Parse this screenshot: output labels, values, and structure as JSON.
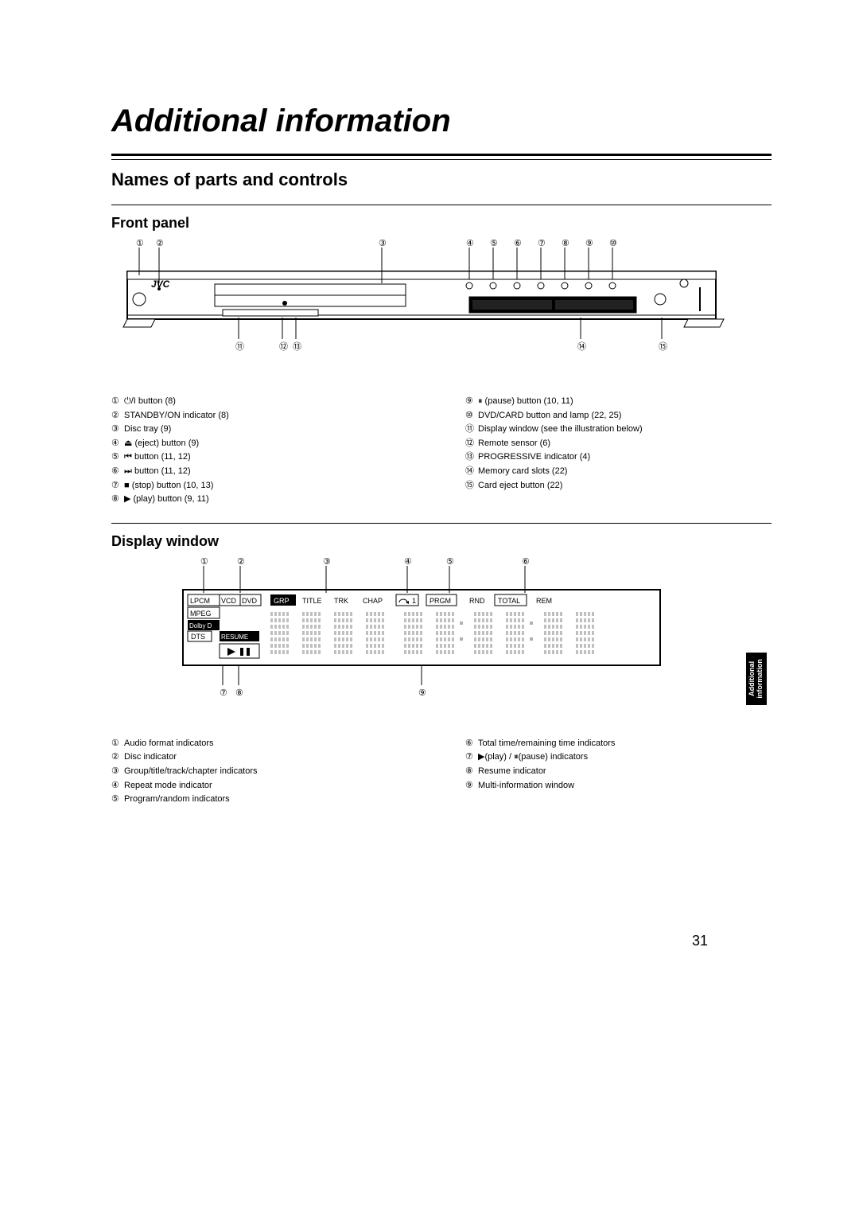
{
  "page": {
    "title": "Additional information",
    "section": "Names of parts and controls",
    "pageNumber": "31"
  },
  "sideTab": {
    "line1": "Additional",
    "line2": "information"
  },
  "frontPanel": {
    "heading": "Front panel",
    "brand": "JVC",
    "callouts_top": [
      "①",
      "②",
      "③",
      "④",
      "⑤",
      "⑥",
      "⑦",
      "⑧",
      "⑨",
      "⑩"
    ],
    "callouts_bottom": [
      "⑪",
      "⑫",
      "⑬",
      "⑭",
      "⑮"
    ],
    "legend_left": [
      {
        "n": "①",
        "t": " ⏻/I button (8)"
      },
      {
        "n": "②",
        "t": " STANDBY/ON indicator (8)"
      },
      {
        "n": "③",
        "t": " Disc tray (9)"
      },
      {
        "n": "④",
        "t": " ⏏ (eject) button (9)"
      },
      {
        "n": "⑤",
        "t": " ⏮ button (11, 12)"
      },
      {
        "n": "⑥",
        "t": " ⏭ button (11, 12)"
      },
      {
        "n": "⑦",
        "t": " ■ (stop) button (10, 13)"
      },
      {
        "n": "⑧",
        "t": " ▶ (play) button (9, 11)"
      }
    ],
    "legend_right": [
      {
        "n": "⑨",
        "t": " ⏸ (pause) button (10, 11)"
      },
      {
        "n": "⑩",
        "t": " DVD/CARD button and lamp (22, 25)"
      },
      {
        "n": "⑪",
        "t": " Display window (see the illustration below)"
      },
      {
        "n": "⑫",
        "t": " Remote sensor (6)"
      },
      {
        "n": "⑬",
        "t": " PROGRESSIVE indicator (4)"
      },
      {
        "n": "⑭",
        "t": " Memory card slots (22)"
      },
      {
        "n": "⑮",
        "t": " Card eject button (22)"
      }
    ]
  },
  "displayWindow": {
    "heading": "Display window",
    "labels": [
      "LPCM",
      "VCD",
      "DVD",
      "GRP",
      "TITLE",
      "TRK",
      "CHAP",
      "PRGM",
      "RND",
      "TOTAL",
      "REM",
      "MPEG",
      "Dolby D",
      "DTS",
      "RESUME"
    ],
    "repeat_label": "1",
    "callouts_top": [
      "①",
      "②",
      "③",
      "④",
      "⑤",
      "⑥"
    ],
    "callouts_bottom": [
      "⑦",
      "⑧",
      "⑨"
    ],
    "legend_left": [
      {
        "n": "①",
        "t": " Audio format indicators"
      },
      {
        "n": "②",
        "t": " Disc indicator"
      },
      {
        "n": "③",
        "t": " Group/title/track/chapter indicators"
      },
      {
        "n": "④",
        "t": " Repeat mode indicator"
      },
      {
        "n": "⑤",
        "t": " Program/random indicators"
      }
    ],
    "legend_right": [
      {
        "n": "⑥",
        "t": " Total time/remaining time indicators"
      },
      {
        "n": "⑦",
        "t": " ▶(play) / ⏸(pause) indicators"
      },
      {
        "n": "⑧",
        "t": " Resume indicator"
      },
      {
        "n": "⑨",
        "t": " Multi-information window"
      }
    ]
  },
  "colors": {
    "black": "#000000",
    "white": "#ffffff"
  }
}
